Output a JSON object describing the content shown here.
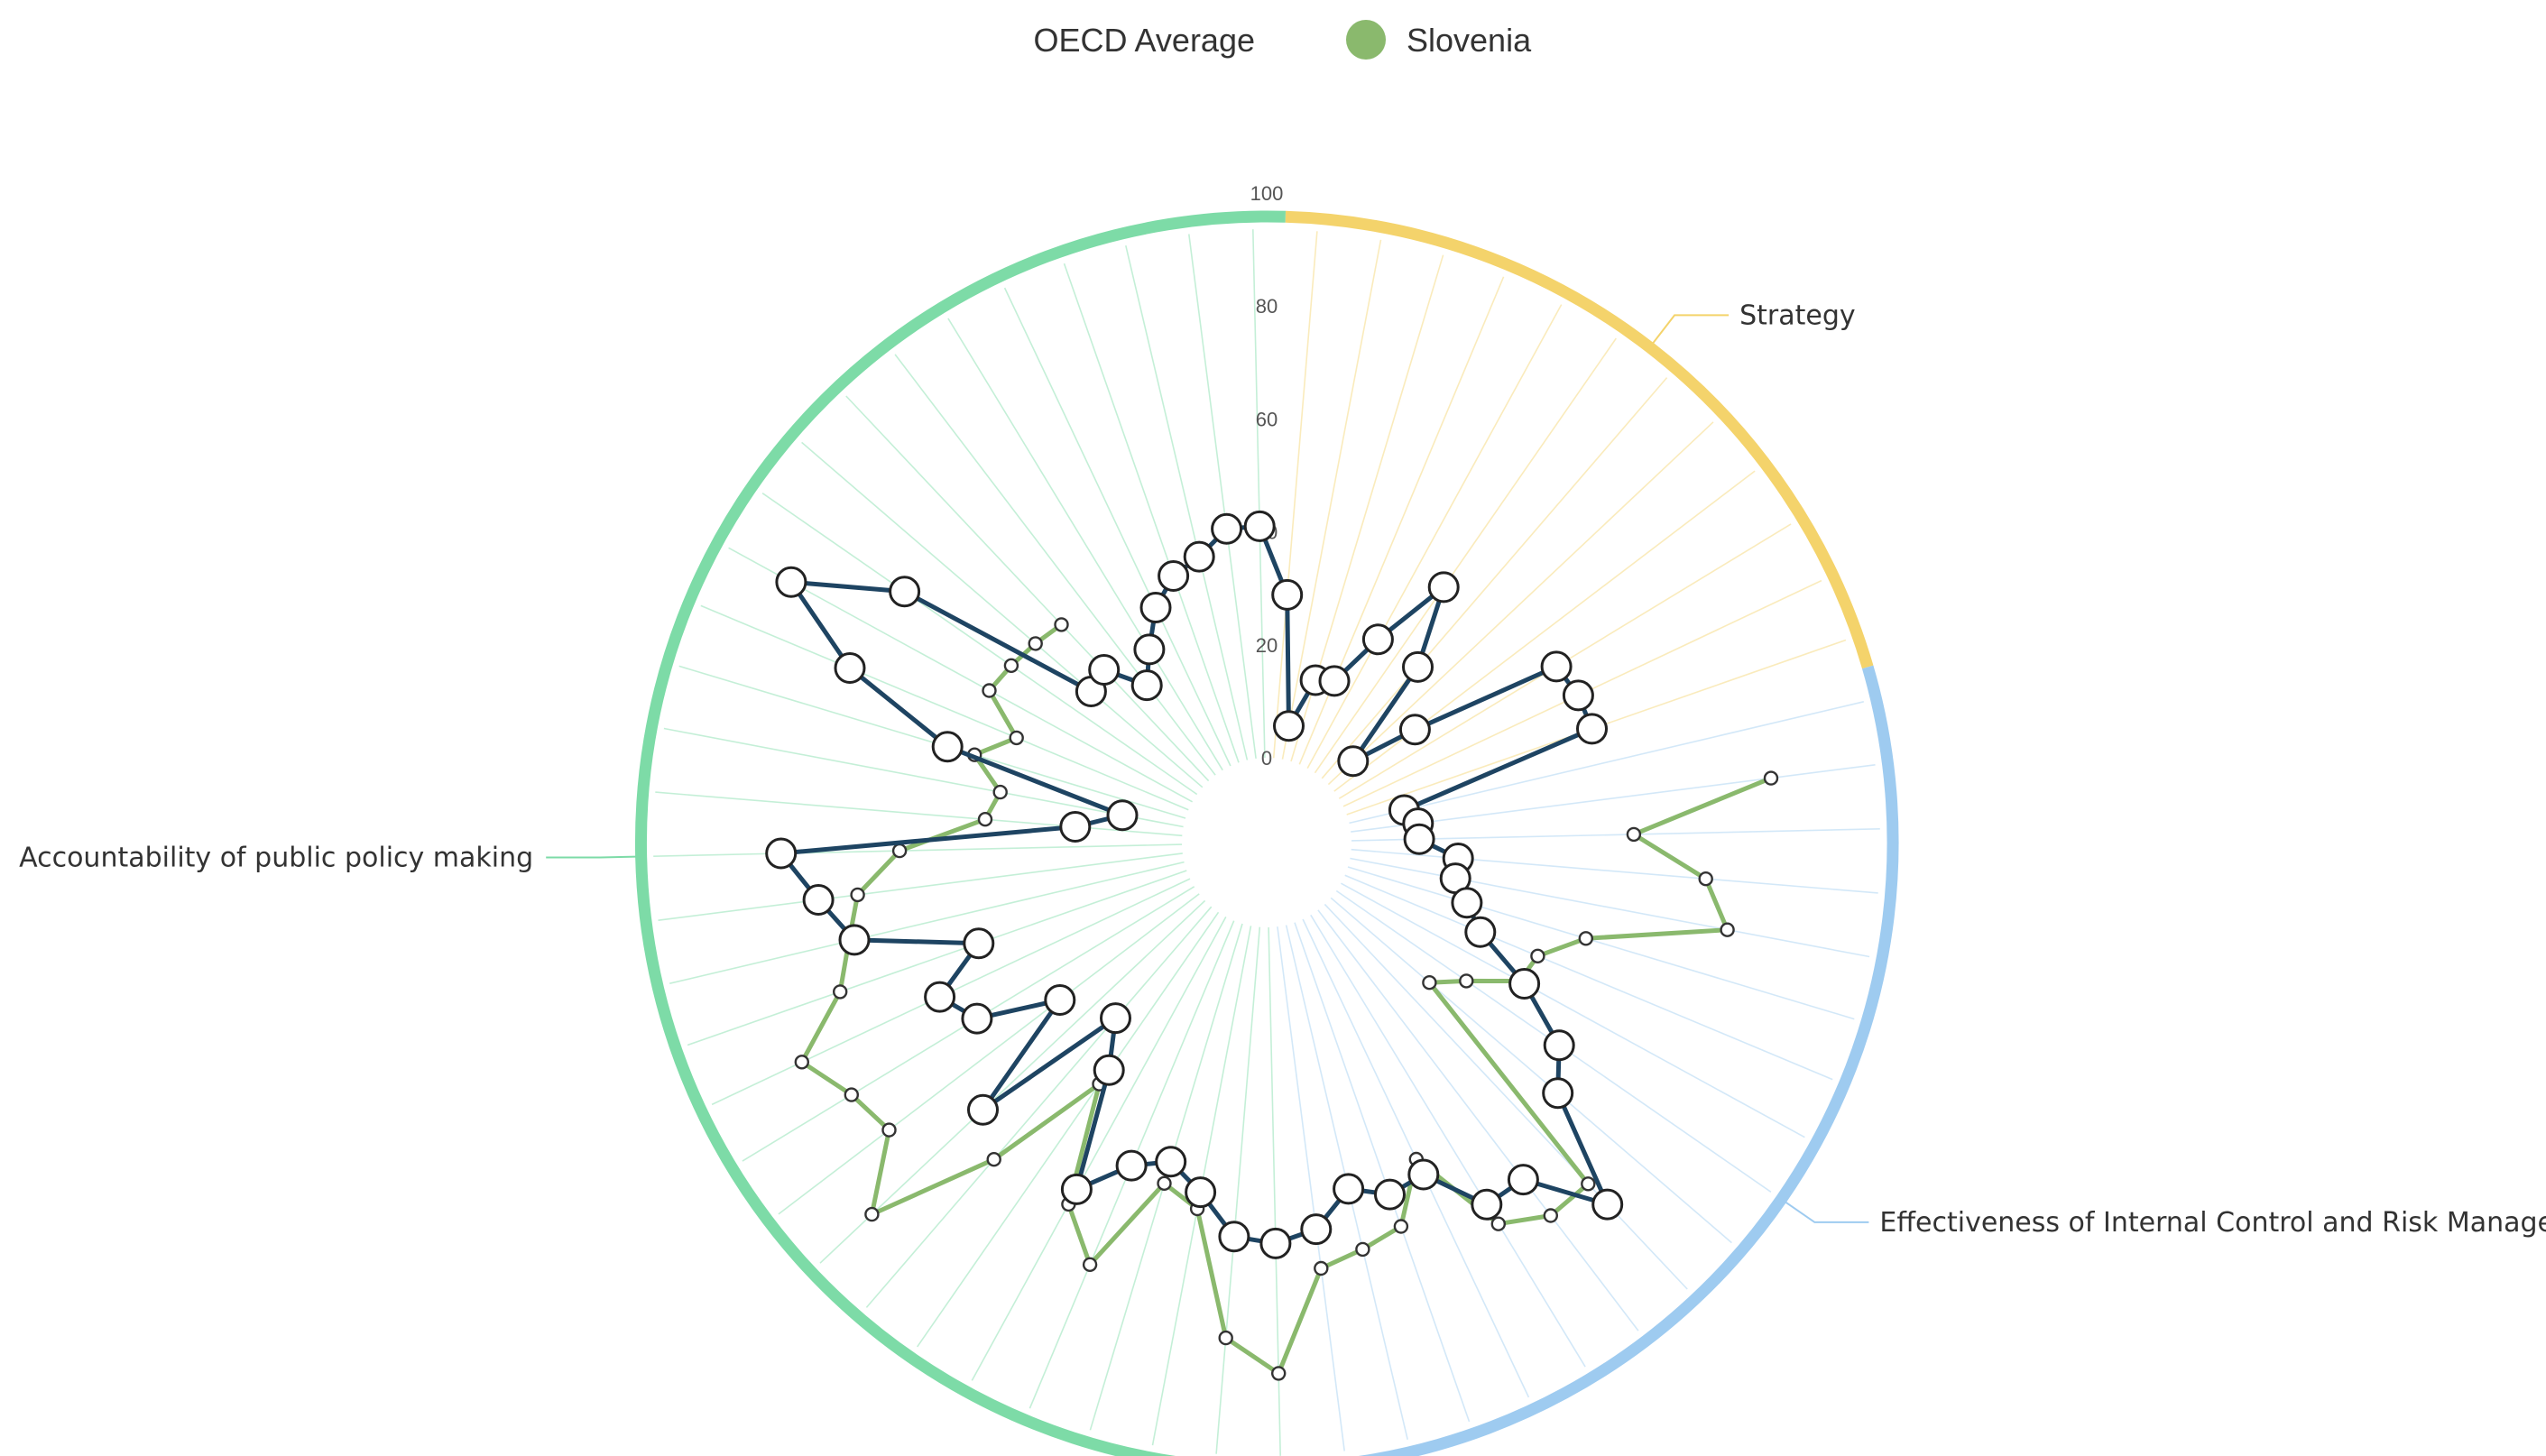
{
  "chart_data": {
    "type": "radar",
    "categories_count": 60,
    "r_ticks": [
      "0",
      "20",
      "40",
      "60",
      "80",
      "100"
    ],
    "rlim": [
      0,
      100
    ],
    "legend": [
      {
        "label": "OECD Average",
        "color": "#1e4462",
        "marker": false
      },
      {
        "label": "Slovenia",
        "color": "#8ab96d",
        "marker": true
      }
    ],
    "groups": [
      {
        "name": "Strategy",
        "color": "#f4d36b",
        "start_index": 0,
        "end_index": 11
      },
      {
        "name": "Effectiveness of Internal Control and Risk Management",
        "color": "#9ecbf0",
        "start_index": 12,
        "end_index": 28
      },
      {
        "name": "Accountability of public policy making",
        "color": "#7ddba7",
        "start_index": 29,
        "end_index": 59
      }
    ],
    "series": [
      {
        "name": "OECD Average",
        "color": "#1e4462",
        "values": [
          29,
          6,
          15,
          16,
          26,
          40,
          26,
          6,
          18,
          45,
          46,
          46,
          10,
          12,
          12,
          19,
          19,
          22,
          26,
          37,
          48,
          53,
          73,
          60,
          60,
          50,
          51,
          48,
          54,
          56,
          55,
          48,
          44,
          47,
          55,
          34,
          26,
          54,
          31,
          45,
          49,
          39,
          60,
          65,
          71,
          19,
          11,
          44,
          65,
          81,
          63,
          26,
          27,
          20,
          25,
          31,
          35,
          37,
          41,
          41
        ]
      },
      {
        "name": "Slovenia",
        "color": "#8ab96d",
        "values": [
          null,
          null,
          null,
          null,
          null,
          null,
          null,
          null,
          null,
          null,
          null,
          null,
          null,
          75,
          50,
          63,
          68,
          44,
          37,
          36,
          28,
          23,
          68,
          68,
          64,
          47,
          57,
          59,
          61,
          79,
          73,
          51,
          48,
          66,
          58,
          37,
          59,
          81,
          69,
          71,
          76,
          65,
          61,
          58,
          50,
          35,
          33,
          39,
          33,
          41,
          40,
          39,
          38,
          null,
          null,
          null,
          null,
          null,
          null,
          null
        ]
      }
    ]
  }
}
